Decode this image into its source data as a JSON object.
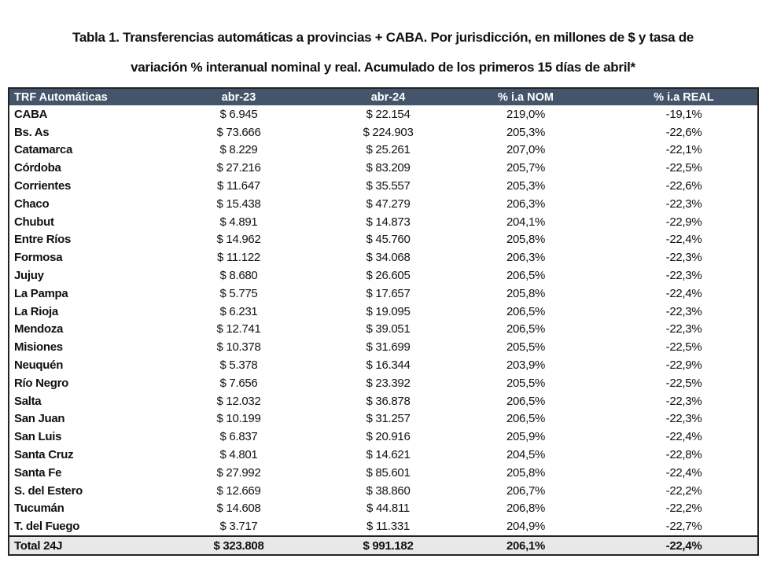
{
  "title": {
    "line1": "Tabla 1. Transferencias automáticas a provincias + CABA. Por jurisdicción, en millones de $ y tasa de",
    "line2": "variación % interanual nominal y real. Acumulado de los primeros 15 días de abril*"
  },
  "table": {
    "header_color": "#44546a",
    "columns": [
      "TRF Automáticas",
      "abr-23",
      "abr-24",
      "% i.a NOM",
      "% i.a REAL"
    ],
    "rows": [
      [
        "CABA",
        "$ 6.945",
        "$ 22.154",
        "219,0%",
        "-19,1%"
      ],
      [
        "Bs. As",
        "$ 73.666",
        "$ 224.903",
        "205,3%",
        "-22,6%"
      ],
      [
        "Catamarca",
        "$ 8.229",
        "$ 25.261",
        "207,0%",
        "-22,1%"
      ],
      [
        "Córdoba",
        "$ 27.216",
        "$ 83.209",
        "205,7%",
        "-22,5%"
      ],
      [
        "Corrientes",
        "$ 11.647",
        "$ 35.557",
        "205,3%",
        "-22,6%"
      ],
      [
        "Chaco",
        "$ 15.438",
        "$ 47.279",
        "206,3%",
        "-22,3%"
      ],
      [
        "Chubut",
        "$ 4.891",
        "$ 14.873",
        "204,1%",
        "-22,9%"
      ],
      [
        "Entre Ríos",
        "$ 14.962",
        "$ 45.760",
        "205,8%",
        "-22,4%"
      ],
      [
        "Formosa",
        "$ 11.122",
        "$ 34.068",
        "206,3%",
        "-22,3%"
      ],
      [
        "Jujuy",
        "$ 8.680",
        "$ 26.605",
        "206,5%",
        "-22,3%"
      ],
      [
        "La Pampa",
        "$ 5.775",
        "$ 17.657",
        "205,8%",
        "-22,4%"
      ],
      [
        "La Rioja",
        "$ 6.231",
        "$ 19.095",
        "206,5%",
        "-22,3%"
      ],
      [
        "Mendoza",
        "$ 12.741",
        "$ 39.051",
        "206,5%",
        "-22,3%"
      ],
      [
        "Misiones",
        "$ 10.378",
        "$ 31.699",
        "205,5%",
        "-22,5%"
      ],
      [
        "Neuquén",
        "$ 5.378",
        "$ 16.344",
        "203,9%",
        "-22,9%"
      ],
      [
        "Río Negro",
        "$ 7.656",
        "$ 23.392",
        "205,5%",
        "-22,5%"
      ],
      [
        "Salta",
        "$ 12.032",
        "$ 36.878",
        "206,5%",
        "-22,3%"
      ],
      [
        "San Juan",
        "$ 10.199",
        "$ 31.257",
        "206,5%",
        "-22,3%"
      ],
      [
        "San Luis",
        "$ 6.837",
        "$ 20.916",
        "205,9%",
        "-22,4%"
      ],
      [
        "Santa Cruz",
        "$ 4.801",
        "$ 14.621",
        "204,5%",
        "-22,8%"
      ],
      [
        "Santa Fe",
        "$ 27.992",
        "$ 85.601",
        "205,8%",
        "-22,4%"
      ],
      [
        "S. del Estero",
        "$ 12.669",
        "$ 38.860",
        "206,7%",
        "-22,2%"
      ],
      [
        "Tucumán",
        "$ 14.608",
        "$ 44.811",
        "206,8%",
        "-22,2%"
      ],
      [
        "T. del Fuego",
        "$ 3.717",
        "$ 11.331",
        "204,9%",
        "-22,7%"
      ]
    ],
    "total": [
      "Total 24J",
      "$ 323.808",
      "$ 991.182",
      "206,1%",
      "-22,4%"
    ]
  }
}
